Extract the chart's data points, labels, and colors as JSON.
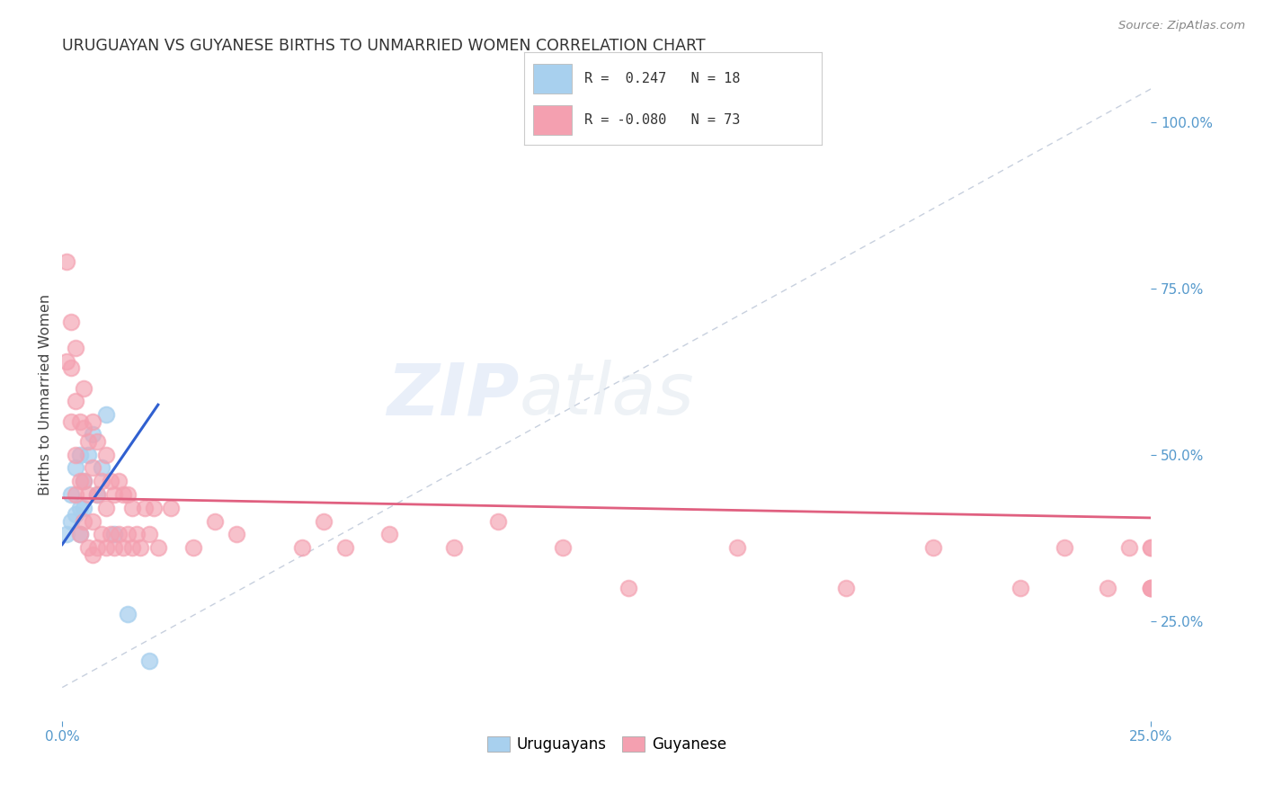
{
  "title": "URUGUAYAN VS GUYANESE BIRTHS TO UNMARRIED WOMEN CORRELATION CHART",
  "source": "Source: ZipAtlas.com",
  "xlim": [
    0.0,
    0.25
  ],
  "ylim": [
    0.1,
    1.08
  ],
  "legend1": {
    "R": "0.247",
    "N": "18"
  },
  "legend2": {
    "R": "-0.080",
    "N": "73"
  },
  "uruguayan_x": [
    0.001,
    0.002,
    0.002,
    0.003,
    0.003,
    0.004,
    0.004,
    0.004,
    0.005,
    0.005,
    0.006,
    0.007,
    0.008,
    0.009,
    0.01,
    0.012,
    0.015,
    0.02
  ],
  "uruguayan_y": [
    0.38,
    0.4,
    0.44,
    0.41,
    0.48,
    0.38,
    0.42,
    0.5,
    0.42,
    0.46,
    0.5,
    0.53,
    0.44,
    0.48,
    0.56,
    0.38,
    0.26,
    0.19
  ],
  "guyanese_x": [
    0.001,
    0.001,
    0.002,
    0.002,
    0.002,
    0.003,
    0.003,
    0.003,
    0.003,
    0.004,
    0.004,
    0.004,
    0.005,
    0.005,
    0.005,
    0.005,
    0.006,
    0.006,
    0.006,
    0.007,
    0.007,
    0.007,
    0.007,
    0.008,
    0.008,
    0.008,
    0.009,
    0.009,
    0.01,
    0.01,
    0.01,
    0.011,
    0.011,
    0.012,
    0.012,
    0.013,
    0.013,
    0.014,
    0.014,
    0.015,
    0.015,
    0.016,
    0.016,
    0.017,
    0.018,
    0.019,
    0.02,
    0.021,
    0.022,
    0.025,
    0.03,
    0.035,
    0.04,
    0.055,
    0.06,
    0.065,
    0.075,
    0.09,
    0.1,
    0.115,
    0.13,
    0.155,
    0.18,
    0.2,
    0.22,
    0.23,
    0.24,
    0.245,
    0.25,
    0.25,
    0.25,
    0.25,
    0.25
  ],
  "guyanese_y": [
    0.64,
    0.79,
    0.55,
    0.63,
    0.7,
    0.44,
    0.5,
    0.58,
    0.66,
    0.38,
    0.46,
    0.55,
    0.4,
    0.46,
    0.54,
    0.6,
    0.36,
    0.44,
    0.52,
    0.35,
    0.4,
    0.48,
    0.55,
    0.36,
    0.44,
    0.52,
    0.38,
    0.46,
    0.36,
    0.42,
    0.5,
    0.38,
    0.46,
    0.36,
    0.44,
    0.38,
    0.46,
    0.36,
    0.44,
    0.38,
    0.44,
    0.36,
    0.42,
    0.38,
    0.36,
    0.42,
    0.38,
    0.42,
    0.36,
    0.42,
    0.36,
    0.4,
    0.38,
    0.36,
    0.4,
    0.36,
    0.38,
    0.36,
    0.4,
    0.36,
    0.3,
    0.36,
    0.3,
    0.36,
    0.3,
    0.36,
    0.3,
    0.36,
    0.3,
    0.36,
    0.3,
    0.36,
    0.3
  ],
  "blue_scatter_color": "#a8d0ee",
  "pink_scatter_color": "#f4a0b0",
  "blue_line_color": "#3060d0",
  "pink_line_color": "#e06080",
  "diagonal_color": "#b0bcd0",
  "watermark_color": "#c8d8f0",
  "watermark_alpha": 0.4,
  "background_color": "#ffffff",
  "grid_color": "#e0e4ec",
  "grid_linestyle": "--",
  "ytick_color": "#5599cc",
  "xtick_color": "#5599cc"
}
